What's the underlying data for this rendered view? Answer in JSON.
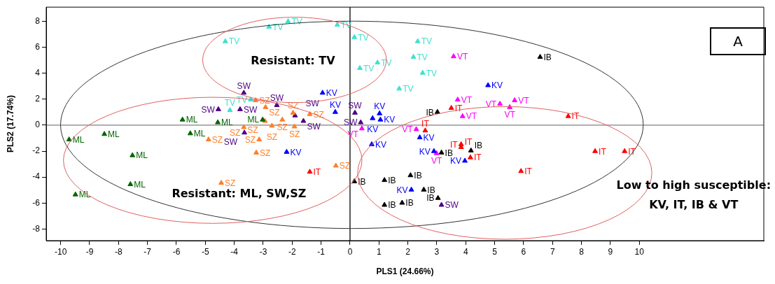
{
  "chart_data": {
    "type": "scatter",
    "xlabel": "PLS1 (24.66%)",
    "ylabel": "PLS2 (17.74%)",
    "xlim": [
      -10.5,
      14.3
    ],
    "ylim": [
      -8.9,
      9.1
    ],
    "xticks": [
      -10,
      -9,
      -8,
      -7,
      -6,
      -5,
      -4,
      -3,
      -2,
      -1,
      0,
      1,
      2,
      3,
      4,
      5,
      6,
      7,
      8,
      9,
      10
    ],
    "yticks": [
      -8,
      -6,
      -4,
      -2,
      0,
      2,
      4,
      6,
      8
    ],
    "grid": false,
    "legend": false,
    "marker": "triangle",
    "ref_lines": [
      {
        "axis": "x",
        "value": 0,
        "color": "#000000"
      },
      {
        "axis": "y",
        "value": 0,
        "color": "#808080"
      }
    ],
    "annotations": [
      "Resistant: TV",
      "Resistant: ML, SW,SZ",
      "Low to high susceptible: KV, IT, IB & VT",
      "A"
    ],
    "series": [
      {
        "name": "TV",
        "color": "#40e0d0",
        "x": [
          -4.31,
          -2.8,
          -2.14,
          -0.44,
          0.15,
          0.34,
          0.95,
          2.34,
          2.19,
          2.51,
          1.7,
          -3.43,
          -4.15
        ],
        "values": [
          6.46,
          7.58,
          8.0,
          7.73,
          6.78,
          4.4,
          4.82,
          6.46,
          5.25,
          4.03,
          2.81,
          1.96,
          1.15
        ]
      },
      {
        "name": "ML",
        "color": "#006400",
        "x": [
          -5.79,
          -4.57,
          -9.71,
          -8.49,
          -5.52,
          -7.52,
          -7.59,
          -9.49,
          -3.02
        ],
        "values": [
          0.42,
          0.21,
          -1.11,
          -0.69,
          -0.64,
          -2.33,
          -4.56,
          -5.35,
          0.42
        ]
      },
      {
        "name": "SZ",
        "color": "#ff7f27",
        "x": [
          -4.89,
          -4.45,
          -3.26,
          -2.92,
          -1.97,
          -1.39,
          -2.94,
          -2.34,
          -2.7,
          -1.92,
          -3.67,
          -3.14,
          -3.24,
          -0.49
        ],
        "values": [
          -1.11,
          -4.45,
          1.91,
          1.38,
          0.95,
          0.85,
          0.32,
          0.42,
          -0.05,
          -0.11,
          -0.16,
          -1.11,
          -2.12,
          -3.13
        ]
      },
      {
        "name": "SW",
        "color": "#4b0082",
        "x": [
          -3.67,
          -4.55,
          -3.8,
          -2.53,
          -1.9,
          -1.61,
          -3.65,
          0.17,
          0.37,
          3.16
        ],
        "values": [
          2.49,
          1.22,
          1.22,
          1.54,
          0.74,
          0.32,
          -0.58,
          0.95,
          0.21,
          -6.15
        ]
      },
      {
        "name": "KV",
        "color": "#0000ff",
        "x": [
          -2.19,
          -0.95,
          -0.51,
          4.77,
          0.78,
          1.02,
          1.05,
          2.41,
          0.75,
          2.9,
          3.97,
          2.12
        ],
        "values": [
          -2.07,
          2.49,
          1.01,
          3.07,
          0.53,
          0.9,
          0.42,
          -0.95,
          -1.48,
          -2.01,
          -2.75,
          -4.98
        ]
      },
      {
        "name": "VT",
        "color": "#ff00ff",
        "x": [
          0.41,
          3.58,
          3.72,
          3.89,
          5.18,
          2.29,
          2.99,
          5.69,
          5.52
        ],
        "values": [
          -0.26,
          5.3,
          1.96,
          0.69,
          1.64,
          -0.32,
          -2.17,
          1.91,
          1.38
        ]
      },
      {
        "name": "IT",
        "color": "#ff0000",
        "x": [
          -1.39,
          3.5,
          2.6,
          3.84,
          3.84,
          4.16,
          7.54,
          8.47,
          9.49,
          5.91
        ],
        "values": [
          -3.6,
          1.32,
          -0.42,
          -1.48,
          -1.7,
          -2.49,
          0.69,
          -2.01,
          -2.01,
          -3.55
        ]
      },
      {
        "name": "IB",
        "color": "#000000",
        "x": [
          0.15,
          3.02,
          4.18,
          3.16,
          1.19,
          2.09,
          2.55,
          3.04,
          1.19,
          1.8,
          6.57
        ],
        "values": [
          -4.34,
          1.01,
          -1.96,
          -2.12,
          -4.24,
          -3.87,
          -4.98,
          -5.62,
          -6.15,
          -5.99,
          5.25
        ]
      }
    ]
  }
}
